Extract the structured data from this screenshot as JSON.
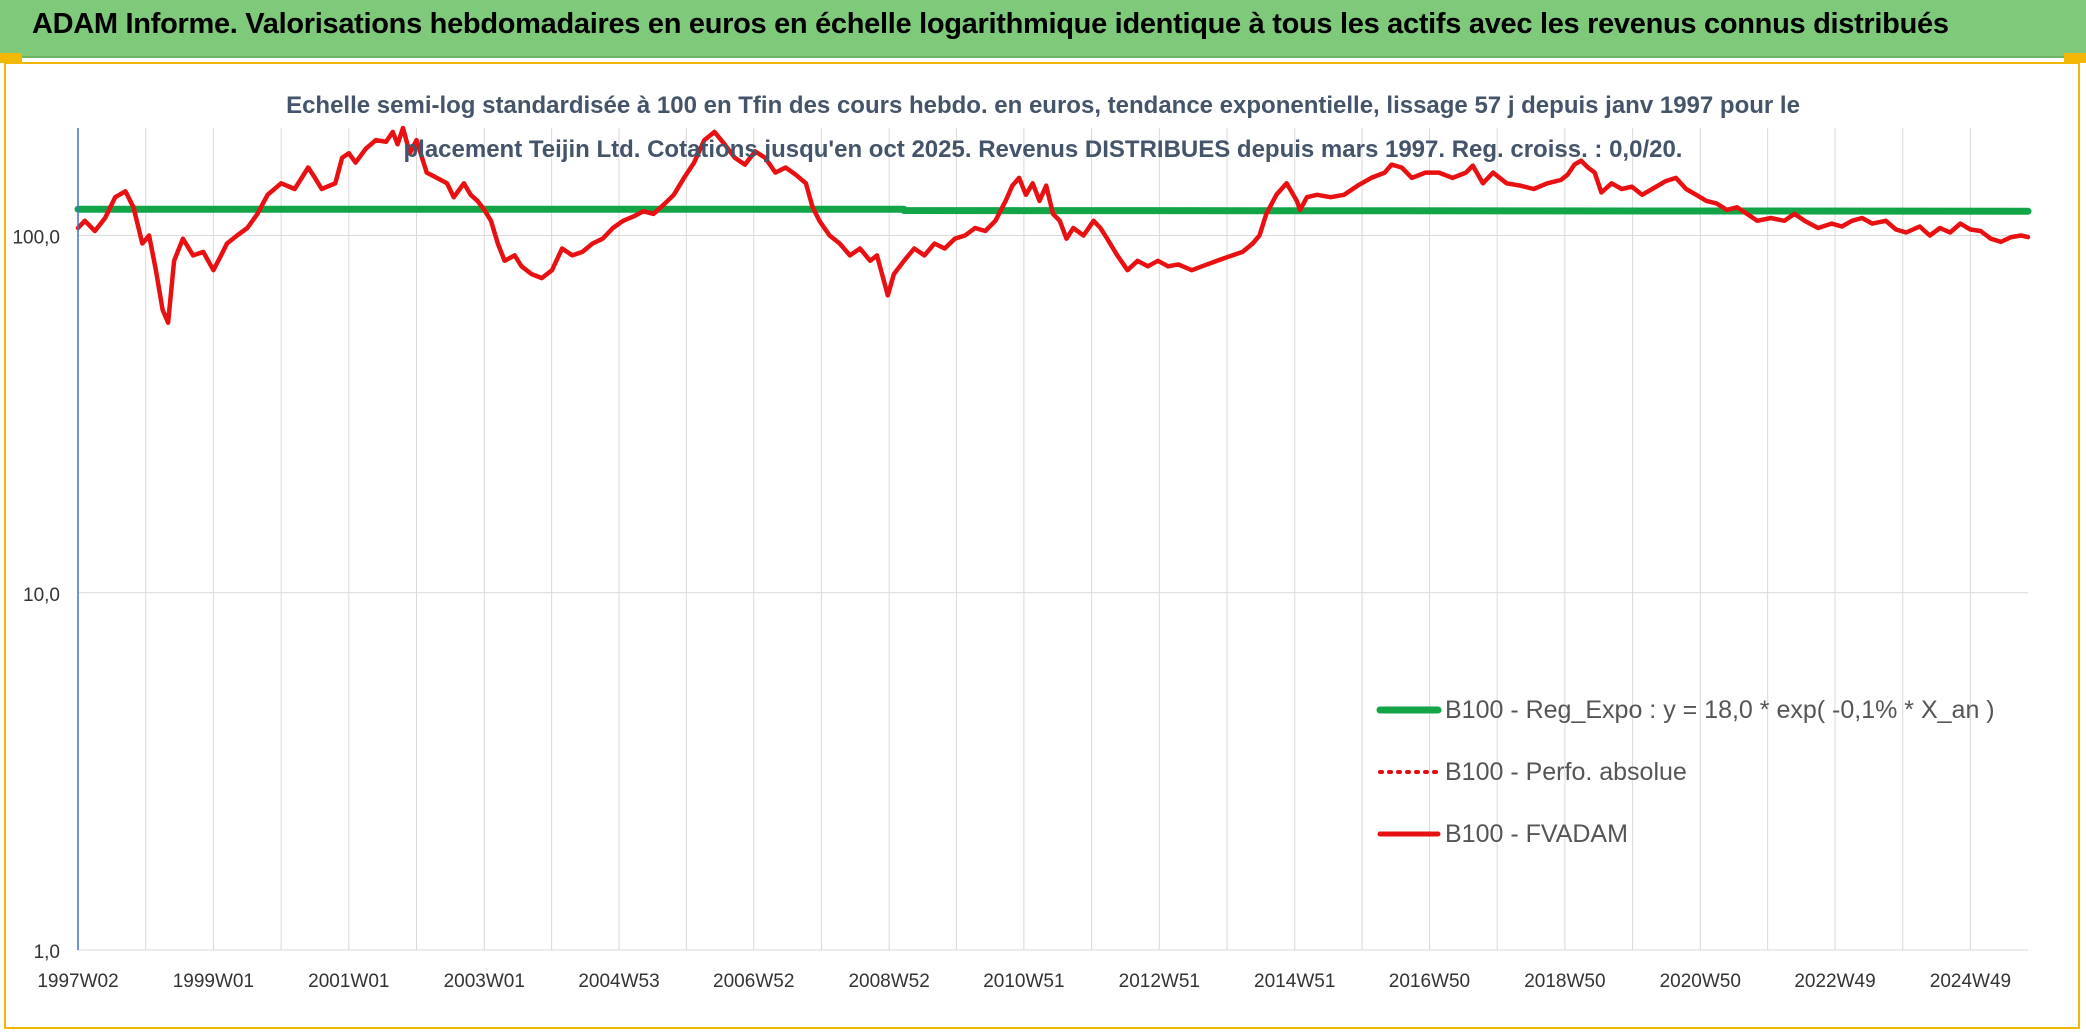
{
  "header": {
    "title": "ADAM Informe. Valorisations hebdomadaires en euros en échelle logarithmique identique à tous les actifs avec les revenus connus distribués"
  },
  "chart_data": {
    "type": "line",
    "title_lines": [
      "Echelle semi-log standardisée à 100 en Tfin des cours hebdo. en euros, tendance exponentielle, lissage 57 j depuis janv 1997 pour le",
      "placement Teijin Ltd. Cotations jusqu'en oct 2025. Revenus DISTRIBUES depuis mars 1997. Reg. croiss. : 0,0/20."
    ],
    "y_scale": "log",
    "ylim": [
      1,
      200
    ],
    "y_ticks": [
      {
        "value": 1,
        "label": "1,0"
      },
      {
        "value": 10,
        "label": "10,0"
      },
      {
        "value": 100,
        "label": "100,0"
      }
    ],
    "x_range": [
      1997.0,
      2025.8
    ],
    "x_ticks": [
      {
        "label": "1997W02",
        "year": 1997.0
      },
      {
        "label": "1999W01",
        "year": 1999.0
      },
      {
        "label": "2001W01",
        "year": 2001.0
      },
      {
        "label": "2003W01",
        "year": 2003.0
      },
      {
        "label": "2004W53",
        "year": 2004.99
      },
      {
        "label": "2006W52",
        "year": 2006.98
      },
      {
        "label": "2008W52",
        "year": 2008.98
      },
      {
        "label": "2010W51",
        "year": 2010.97
      },
      {
        "label": "2012W51",
        "year": 2012.97
      },
      {
        "label": "2014W51",
        "year": 2014.97
      },
      {
        "label": "2016W50",
        "year": 2016.96
      },
      {
        "label": "2018W50",
        "year": 2018.96
      },
      {
        "label": "2020W50",
        "year": 2020.96
      },
      {
        "label": "2022W49",
        "year": 2022.95
      },
      {
        "label": "2024W49",
        "year": 2024.95
      }
    ],
    "grid": "vertical-and-major-horizontal",
    "legend_position": "right",
    "colors": {
      "trend": "#12a548",
      "perf": "#e01010",
      "fvadam": "#e81010"
    },
    "series": [
      {
        "name": "B100 - Reg_Expo : y = 18,0 * exp( -0,1% *  X_an )",
        "style": "solid-thick",
        "color_key": "trend",
        "points": [
          [
            1997.0,
            118.5
          ],
          [
            2009.2,
            118.5
          ],
          [
            2009.2,
            117.5
          ],
          [
            2025.8,
            117.0
          ]
        ]
      },
      {
        "name": "B100 - Perfo. absolue",
        "style": "dotted",
        "color_key": "perf",
        "points": []
      },
      {
        "name": "B100 - FVADAM",
        "style": "solid",
        "color_key": "fvadam",
        "points": [
          [
            1997.0,
            105
          ],
          [
            1997.1,
            110
          ],
          [
            1997.25,
            103
          ],
          [
            1997.4,
            112
          ],
          [
            1997.55,
            128
          ],
          [
            1997.7,
            133
          ],
          [
            1997.82,
            120
          ],
          [
            1997.95,
            95
          ],
          [
            1998.05,
            100
          ],
          [
            1998.15,
            80
          ],
          [
            1998.25,
            62
          ],
          [
            1998.33,
            57
          ],
          [
            1998.42,
            85
          ],
          [
            1998.55,
            98
          ],
          [
            1998.7,
            88
          ],
          [
            1998.85,
            90
          ],
          [
            1999.0,
            80
          ],
          [
            1999.1,
            87
          ],
          [
            1999.2,
            95
          ],
          [
            1999.35,
            100
          ],
          [
            1999.5,
            105
          ],
          [
            1999.65,
            115
          ],
          [
            1999.8,
            130
          ],
          [
            2000.0,
            140
          ],
          [
            2000.2,
            135
          ],
          [
            2000.4,
            155
          ],
          [
            2000.5,
            145
          ],
          [
            2000.6,
            135
          ],
          [
            2000.8,
            140
          ],
          [
            2000.9,
            165
          ],
          [
            2001.0,
            170
          ],
          [
            2001.1,
            160
          ],
          [
            2001.25,
            175
          ],
          [
            2001.4,
            185
          ],
          [
            2001.55,
            183
          ],
          [
            2001.65,
            195
          ],
          [
            2001.72,
            180
          ],
          [
            2001.8,
            200
          ],
          [
            2001.9,
            170
          ],
          [
            2002.0,
            185
          ],
          [
            2002.15,
            150
          ],
          [
            2002.3,
            145
          ],
          [
            2002.45,
            140
          ],
          [
            2002.55,
            128
          ],
          [
            2002.7,
            140
          ],
          [
            2002.8,
            130
          ],
          [
            2002.9,
            125
          ],
          [
            2003.0,
            118
          ],
          [
            2003.1,
            110
          ],
          [
            2003.2,
            95
          ],
          [
            2003.3,
            85
          ],
          [
            2003.45,
            88
          ],
          [
            2003.55,
            82
          ],
          [
            2003.7,
            78
          ],
          [
            2003.85,
            76
          ],
          [
            2004.0,
            80
          ],
          [
            2004.15,
            92
          ],
          [
            2004.3,
            88
          ],
          [
            2004.45,
            90
          ],
          [
            2004.6,
            95
          ],
          [
            2004.75,
            98
          ],
          [
            2004.9,
            105
          ],
          [
            2005.05,
            110
          ],
          [
            2005.2,
            113
          ],
          [
            2005.35,
            117
          ],
          [
            2005.5,
            115
          ],
          [
            2005.65,
            122
          ],
          [
            2005.8,
            130
          ],
          [
            2005.95,
            145
          ],
          [
            2006.1,
            160
          ],
          [
            2006.25,
            185
          ],
          [
            2006.4,
            195
          ],
          [
            2006.55,
            180
          ],
          [
            2006.7,
            165
          ],
          [
            2006.85,
            158
          ],
          [
            2007.0,
            172
          ],
          [
            2007.15,
            165
          ],
          [
            2007.3,
            150
          ],
          [
            2007.45,
            155
          ],
          [
            2007.6,
            148
          ],
          [
            2007.75,
            140
          ],
          [
            2007.85,
            120
          ],
          [
            2007.95,
            110
          ],
          [
            2008.1,
            100
          ],
          [
            2008.25,
            95
          ],
          [
            2008.4,
            88
          ],
          [
            2008.55,
            92
          ],
          [
            2008.7,
            85
          ],
          [
            2008.8,
            88
          ],
          [
            2008.9,
            75
          ],
          [
            2008.96,
            68
          ],
          [
            2009.05,
            78
          ],
          [
            2009.2,
            85
          ],
          [
            2009.35,
            92
          ],
          [
            2009.5,
            88
          ],
          [
            2009.65,
            95
          ],
          [
            2009.8,
            92
          ],
          [
            2009.95,
            98
          ],
          [
            2010.1,
            100
          ],
          [
            2010.25,
            105
          ],
          [
            2010.4,
            103
          ],
          [
            2010.55,
            110
          ],
          [
            2010.7,
            125
          ],
          [
            2010.8,
            138
          ],
          [
            2010.9,
            145
          ],
          [
            2011.0,
            130
          ],
          [
            2011.1,
            140
          ],
          [
            2011.2,
            125
          ],
          [
            2011.3,
            138
          ],
          [
            2011.4,
            115
          ],
          [
            2011.5,
            110
          ],
          [
            2011.6,
            98
          ],
          [
            2011.7,
            105
          ],
          [
            2011.85,
            100
          ],
          [
            2012.0,
            110
          ],
          [
            2012.1,
            105
          ],
          [
            2012.2,
            98
          ],
          [
            2012.35,
            88
          ],
          [
            2012.5,
            80
          ],
          [
            2012.65,
            85
          ],
          [
            2012.8,
            82
          ],
          [
            2012.95,
            85
          ],
          [
            2013.1,
            82
          ],
          [
            2013.25,
            83
          ],
          [
            2013.45,
            80
          ],
          [
            2013.6,
            82
          ],
          [
            2013.75,
            84
          ],
          [
            2013.9,
            86
          ],
          [
            2014.05,
            88
          ],
          [
            2014.2,
            90
          ],
          [
            2014.35,
            95
          ],
          [
            2014.45,
            100
          ],
          [
            2014.55,
            115
          ],
          [
            2014.7,
            130
          ],
          [
            2014.85,
            140
          ],
          [
            2015.0,
            125
          ],
          [
            2015.05,
            118
          ],
          [
            2015.15,
            128
          ],
          [
            2015.3,
            130
          ],
          [
            2015.5,
            128
          ],
          [
            2015.7,
            130
          ],
          [
            2015.9,
            138
          ],
          [
            2016.1,
            145
          ],
          [
            2016.3,
            150
          ],
          [
            2016.4,
            158
          ],
          [
            2016.55,
            155
          ],
          [
            2016.7,
            145
          ],
          [
            2016.9,
            150
          ],
          [
            2017.1,
            150
          ],
          [
            2017.3,
            145
          ],
          [
            2017.5,
            150
          ],
          [
            2017.6,
            157
          ],
          [
            2017.75,
            140
          ],
          [
            2017.9,
            150
          ],
          [
            2018.1,
            140
          ],
          [
            2018.3,
            138
          ],
          [
            2018.5,
            135
          ],
          [
            2018.7,
            140
          ],
          [
            2018.9,
            143
          ],
          [
            2019.0,
            148
          ],
          [
            2019.1,
            158
          ],
          [
            2019.2,
            162
          ],
          [
            2019.3,
            155
          ],
          [
            2019.4,
            150
          ],
          [
            2019.5,
            132
          ],
          [
            2019.65,
            140
          ],
          [
            2019.8,
            135
          ],
          [
            2019.95,
            137
          ],
          [
            2020.1,
            130
          ],
          [
            2020.25,
            135
          ],
          [
            2020.45,
            142
          ],
          [
            2020.6,
            145
          ],
          [
            2020.75,
            135
          ],
          [
            2020.9,
            130
          ],
          [
            2021.05,
            125
          ],
          [
            2021.2,
            123
          ],
          [
            2021.35,
            118
          ],
          [
            2021.5,
            120
          ],
          [
            2021.65,
            115
          ],
          [
            2021.8,
            110
          ],
          [
            2022.0,
            112
          ],
          [
            2022.2,
            110
          ],
          [
            2022.35,
            115
          ],
          [
            2022.5,
            110
          ],
          [
            2022.7,
            105
          ],
          [
            2022.9,
            108
          ],
          [
            2023.05,
            106
          ],
          [
            2023.2,
            110
          ],
          [
            2023.35,
            112
          ],
          [
            2023.5,
            108
          ],
          [
            2023.7,
            110
          ],
          [
            2023.85,
            104
          ],
          [
            2024.0,
            102
          ],
          [
            2024.2,
            106
          ],
          [
            2024.35,
            100
          ],
          [
            2024.5,
            105
          ],
          [
            2024.65,
            102
          ],
          [
            2024.8,
            108
          ],
          [
            2024.95,
            104
          ],
          [
            2025.1,
            103
          ],
          [
            2025.25,
            98
          ],
          [
            2025.4,
            96
          ],
          [
            2025.55,
            99
          ],
          [
            2025.7,
            100
          ],
          [
            2025.8,
            99
          ]
        ]
      }
    ]
  }
}
